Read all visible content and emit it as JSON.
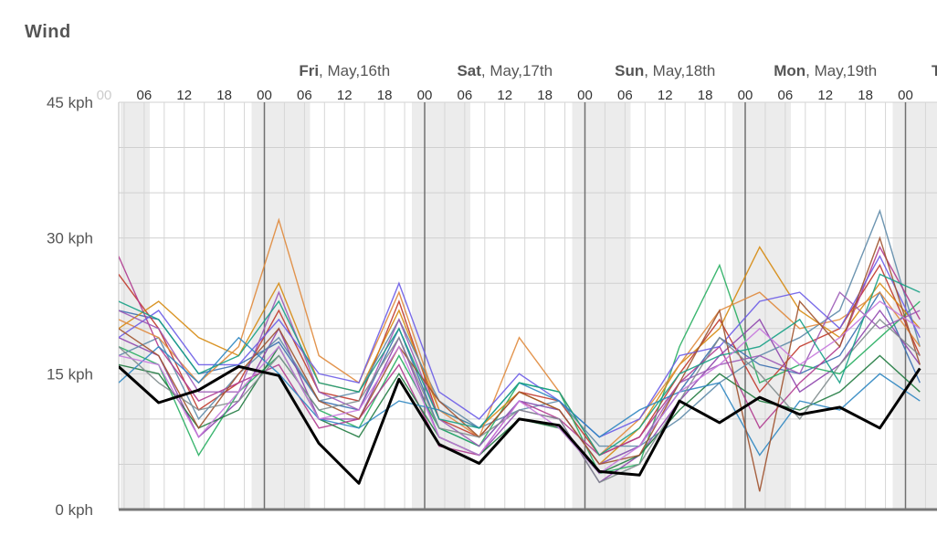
{
  "title": "Wind",
  "chart_data": {
    "type": "line",
    "title": "Wind",
    "ylabel": "",
    "xlabel": "",
    "unit": "kph",
    "ylim": [
      0,
      45
    ],
    "yticks": [
      "0 kph",
      "15 kph",
      "30 kph",
      "45 kph"
    ],
    "grid": true,
    "day_labels": [
      {
        "day": "Fri",
        "date": ", May,16th"
      },
      {
        "day": "Sat",
        "date": ", May,17th"
      },
      {
        "day": "Sun",
        "date": ", May,18th"
      },
      {
        "day": "Mon",
        "date": ", May,19th"
      },
      {
        "day": "T",
        "date": ""
      }
    ],
    "hour_labels": [
      "00",
      "06",
      "12",
      "18",
      "00",
      "06",
      "12",
      "18",
      "00",
      "06",
      "12",
      "18",
      "00",
      "06",
      "12",
      "18",
      "00",
      "06",
      "12",
      "18",
      "00"
    ],
    "colors": {
      "main_series": "#000000",
      "ensemble": [
        "#3a6fb0",
        "#c0392b",
        "#8e44ad",
        "#27ae60",
        "#d68910",
        "#5d8aa8",
        "#b03a8f",
        "#1f7a3f",
        "#e08a3c",
        "#6c5ce7",
        "#9b59b6",
        "#2e86c1",
        "#a0522d",
        "#7f8c8d",
        "#16a085",
        "#c678dd"
      ]
    },
    "x_hours_start": "Thu 00",
    "step_hours": 6,
    "series": [
      {
        "values": [
          15.8,
          11.8,
          13.2,
          15.8,
          14.8,
          7.3,
          2.9,
          14.4,
          7.2,
          5.1,
          10.0,
          9.3,
          4.2,
          3.8,
          12.0,
          9.6,
          12.4,
          10.5,
          11.3,
          9.0,
          15.6
        ]
      },
      {
        "values": [
          22.0,
          21.0,
          15.0,
          16.0,
          18.5,
          12.0,
          11.0,
          20.0,
          9.0,
          7.0,
          12.0,
          11.0,
          5.0,
          7.0,
          13.0,
          19.0,
          16.0,
          15.0,
          17.0,
          24.0,
          14.0
        ]
      },
      {
        "values": [
          26.0,
          20.0,
          11.0,
          14.0,
          22.0,
          13.0,
          12.0,
          23.0,
          10.0,
          8.0,
          13.0,
          12.0,
          6.0,
          8.0,
          15.0,
          21.0,
          13.0,
          18.0,
          20.0,
          27.0,
          17.0
        ]
      },
      {
        "values": [
          19.0,
          17.0,
          8.0,
          12.0,
          20.0,
          10.0,
          10.0,
          19.0,
          8.0,
          6.0,
          11.0,
          10.0,
          3.0,
          6.0,
          12.0,
          17.0,
          21.0,
          13.0,
          16.0,
          22.0,
          16.0
        ]
      },
      {
        "values": [
          18.0,
          16.0,
          6.0,
          13.0,
          17.0,
          11.0,
          9.0,
          17.0,
          9.0,
          7.0,
          14.0,
          13.0,
          4.0,
          5.0,
          18.0,
          27.0,
          14.0,
          16.0,
          15.0,
          19.0,
          23.0
        ]
      },
      {
        "values": [
          20.0,
          23.0,
          19.0,
          17.0,
          25.0,
          14.0,
          13.0,
          22.0,
          11.0,
          9.0,
          13.0,
          11.0,
          5.0,
          9.0,
          16.0,
          20.0,
          29.0,
          22.0,
          19.0,
          25.0,
          20.0
        ]
      },
      {
        "values": [
          17.0,
          19.0,
          10.0,
          15.0,
          19.0,
          12.0,
          13.0,
          21.0,
          12.0,
          9.0,
          11.0,
          12.0,
          7.0,
          7.0,
          10.0,
          14.0,
          17.0,
          19.0,
          22.0,
          33.0,
          18.0
        ]
      },
      {
        "values": [
          28.0,
          18.0,
          12.0,
          14.0,
          16.0,
          9.0,
          10.0,
          16.0,
          7.0,
          6.0,
          12.0,
          10.0,
          6.0,
          8.0,
          14.0,
          18.0,
          9.0,
          14.0,
          18.0,
          29.0,
          21.0
        ]
      },
      {
        "values": [
          16.0,
          15.0,
          9.0,
          11.0,
          18.0,
          10.0,
          8.0,
          15.0,
          8.0,
          6.0,
          10.0,
          9.0,
          4.0,
          6.0,
          11.0,
          15.0,
          12.0,
          11.0,
          13.0,
          17.0,
          13.0
        ]
      },
      {
        "values": [
          21.0,
          19.0,
          14.0,
          18.0,
          32.0,
          17.0,
          14.0,
          24.0,
          11.0,
          8.0,
          19.0,
          13.0,
          6.0,
          10.0,
          16.0,
          22.0,
          24.0,
          20.0,
          21.0,
          24.0,
          18.0
        ]
      },
      {
        "values": [
          19.0,
          22.0,
          16.0,
          16.0,
          21.0,
          15.0,
          14.0,
          25.0,
          13.0,
          10.0,
          15.0,
          12.0,
          8.0,
          10.0,
          17.0,
          18.0,
          23.0,
          24.0,
          20.0,
          28.0,
          19.0
        ]
      },
      {
        "values": [
          22.0,
          20.0,
          13.0,
          13.0,
          24.0,
          13.0,
          11.0,
          21.0,
          10.0,
          7.0,
          12.0,
          11.0,
          5.0,
          7.0,
          14.0,
          16.0,
          17.0,
          15.0,
          24.0,
          20.0,
          22.0
        ]
      },
      {
        "values": [
          14.0,
          18.0,
          14.0,
          19.0,
          15.0,
          10.0,
          9.0,
          12.0,
          11.0,
          9.0,
          14.0,
          12.0,
          8.0,
          11.0,
          13.0,
          14.0,
          6.0,
          12.0,
          11.0,
          15.0,
          12.0
        ]
      },
      {
        "values": [
          20.0,
          17.0,
          9.0,
          15.0,
          20.0,
          12.0,
          10.0,
          18.0,
          12.0,
          8.0,
          13.0,
          11.0,
          5.0,
          6.0,
          14.0,
          22.0,
          2.0,
          23.0,
          18.0,
          30.0,
          16.0
        ]
      },
      {
        "values": [
          18.0,
          14.0,
          11.0,
          12.0,
          17.0,
          11.0,
          12.0,
          19.0,
          9.0,
          8.0,
          11.0,
          10.0,
          3.0,
          5.0,
          12.0,
          19.0,
          15.0,
          10.0,
          16.0,
          21.0,
          17.0
        ]
      },
      {
        "values": [
          23.0,
          21.0,
          15.0,
          17.0,
          23.0,
          14.0,
          13.0,
          20.0,
          10.0,
          9.0,
          14.0,
          13.0,
          6.0,
          9.0,
          15.0,
          17.0,
          18.0,
          21.0,
          14.0,
          26.0,
          24.0
        ]
      },
      {
        "values": [
          17.0,
          16.0,
          8.0,
          13.0,
          18.0,
          10.0,
          11.0,
          18.0,
          8.0,
          6.0,
          12.0,
          9.0,
          4.0,
          7.0,
          13.0,
          16.0,
          20.0,
          16.0,
          19.0,
          23.0,
          20.0
        ]
      }
    ]
  }
}
